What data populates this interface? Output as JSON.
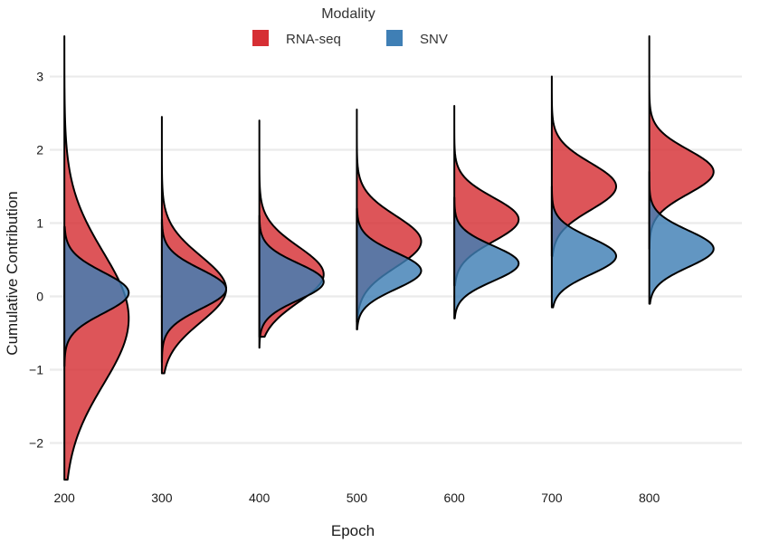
{
  "chart_data": {
    "type": "area",
    "subtype": "split-violin ridgeline (half densities)",
    "xlabel": "Epoch",
    "ylabel": "Cumulative Contribution",
    "xlim": [
      185,
      895
    ],
    "ylim": [
      -2.5,
      3.55
    ],
    "x_ticks": [
      200,
      300,
      400,
      500,
      600,
      700,
      800
    ],
    "y_ticks": [
      -2,
      -1,
      0,
      1,
      2,
      3
    ],
    "grid": "horizontal",
    "legend": {
      "title": "Modality",
      "position": "top-center"
    },
    "density_peak_width": 66,
    "series": [
      {
        "name": "RNA-seq",
        "color": "#d62f34",
        "groups": [
          {
            "epoch": 200,
            "mode": -0.3,
            "sd": 0.9,
            "y_min": -2.5,
            "y_max": 3.55
          },
          {
            "epoch": 300,
            "mode": 0.1,
            "sd": 0.45,
            "y_min": -1.05,
            "y_max": 2.45
          },
          {
            "epoch": 400,
            "mode": 0.3,
            "sd": 0.38,
            "y_min": -0.55,
            "y_max": 2.4
          },
          {
            "epoch": 500,
            "mode": 0.75,
            "sd": 0.35,
            "y_min": -0.35,
            "y_max": 2.55
          },
          {
            "epoch": 600,
            "mode": 1.05,
            "sd": 0.3,
            "y_min": 0.15,
            "y_max": 2.6
          },
          {
            "epoch": 700,
            "mode": 1.5,
            "sd": 0.32,
            "y_min": 0.55,
            "y_max": 3.0
          },
          {
            "epoch": 800,
            "mode": 1.7,
            "sd": 0.3,
            "y_min": 0.65,
            "y_max": 3.55
          }
        ]
      },
      {
        "name": "SNV",
        "color": "#3f7fb5",
        "groups": [
          {
            "epoch": 200,
            "mode": 0.05,
            "sd": 0.28,
            "y_min": -0.95,
            "y_max": 0.95
          },
          {
            "epoch": 300,
            "mode": 0.1,
            "sd": 0.27,
            "y_min": -0.9,
            "y_max": 1.05
          },
          {
            "epoch": 400,
            "mode": 0.2,
            "sd": 0.25,
            "y_min": -0.7,
            "y_max": 1.1
          },
          {
            "epoch": 500,
            "mode": 0.35,
            "sd": 0.25,
            "y_min": -0.45,
            "y_max": 1.2
          },
          {
            "epoch": 600,
            "mode": 0.45,
            "sd": 0.24,
            "y_min": -0.3,
            "y_max": 1.35
          },
          {
            "epoch": 700,
            "mode": 0.55,
            "sd": 0.25,
            "y_min": -0.15,
            "y_max": 1.5
          },
          {
            "epoch": 800,
            "mode": 0.65,
            "sd": 0.25,
            "y_min": -0.1,
            "y_max": 1.7
          }
        ]
      }
    ]
  }
}
